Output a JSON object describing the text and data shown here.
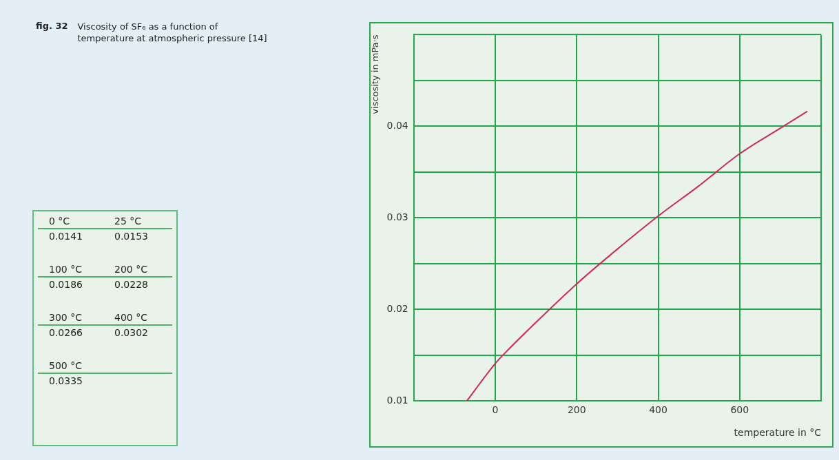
{
  "chart_data": {
    "type": "line",
    "title": "Viscosity of SF₆ as a function of temperature at atmospheric pressure [14]",
    "subtitle": "fig. 32",
    "xlabel": "temperature in °C",
    "ylabel": "viscosity in mPa·s",
    "series": [
      {
        "color": "#d0285a",
        "x": [
          -70,
          0,
          25,
          100,
          200,
          300,
          400,
          500,
          600,
          700,
          765
        ],
        "values": [
          0.01,
          0.0141,
          0.0153,
          0.0186,
          0.0228,
          0.0266,
          0.0302,
          0.0335,
          0.037,
          0.0398,
          0.0416
        ]
      }
    ],
    "xlim": [
      -200,
      800
    ],
    "xticks": [
      {
        "value": -200,
        "label": null
      },
      0,
      200,
      400,
      600,
      {
        "value": 800,
        "label": null
      }
    ],
    "ylim": [
      0.01,
      0.05
    ],
    "yticks": [
      0.01,
      {
        "value": 0.015,
        "label": null
      },
      0.02,
      {
        "value": 0.025,
        "label": null
      },
      0.03,
      {
        "value": 0.035,
        "label": null
      },
      0.04,
      {
        "value": 0.045,
        "label": null
      },
      {
        "value": 0.05,
        "label": null
      }
    ],
    "grid": true,
    "legend": false,
    "marker": "none",
    "line_style": "solid",
    "annotations": [
      "0 °C",
      "25 °C",
      "0.0141",
      "0.0153",
      "100 °C",
      "200 °C",
      "0.0186",
      "0.0228",
      "300 °C",
      "400 °C",
      "0.0266",
      "0.0302",
      "500 °C",
      "0.0335"
    ]
  }
}
